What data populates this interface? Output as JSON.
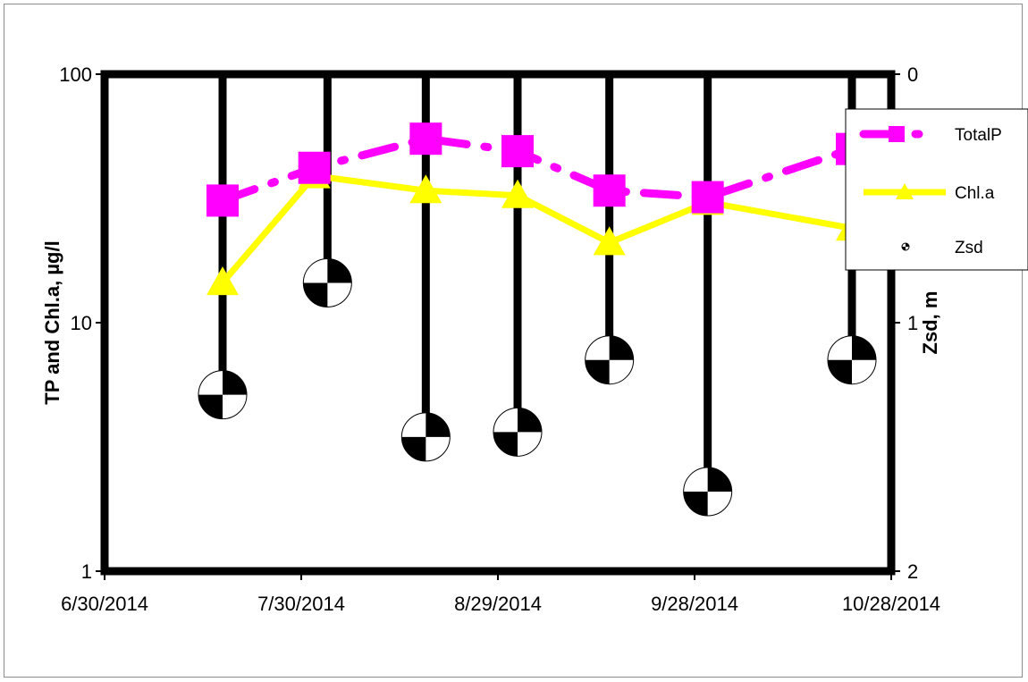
{
  "chart_data": {
    "type": "line",
    "x_axis": {
      "kind": "date",
      "ticks": [
        "6/30/2014",
        "7/30/2014",
        "8/29/2014",
        "9/28/2014",
        "10/28/2014"
      ],
      "range": [
        "2014-06-30",
        "2014-10-28"
      ]
    },
    "y_left": {
      "label": "TP and Chl.a, µg/l",
      "scale": "log",
      "range": [
        1,
        100
      ],
      "ticks": [
        "1",
        "10",
        "100"
      ]
    },
    "y_right": {
      "label": "Zsd, m",
      "scale": "linear",
      "reversed": true,
      "range": [
        0,
        2
      ],
      "ticks": [
        "0",
        "1",
        "2"
      ]
    },
    "grid": false,
    "legend_position": "right",
    "series": [
      {
        "name": "TotalP",
        "axis": "left",
        "color": "#ff00ff",
        "style": "dash-dot",
        "marker": "square",
        "points": [
          {
            "x": "2014-07-18",
            "y": 31
          },
          {
            "x": "2014-08-01",
            "y": 42
          },
          {
            "x": "2014-08-18",
            "y": 55
          },
          {
            "x": "2014-09-01",
            "y": 49
          },
          {
            "x": "2014-09-15",
            "y": 34
          },
          {
            "x": "2014-09-30",
            "y": 32
          },
          {
            "x": "2014-10-22",
            "y": 50
          }
        ]
      },
      {
        "name": "Chl.a",
        "axis": "left",
        "color": "#ffff00",
        "style": "solid",
        "marker": "triangle",
        "points": [
          {
            "x": "2014-07-18",
            "y": 14.5
          },
          {
            "x": "2014-08-01",
            "y": 39
          },
          {
            "x": "2014-08-18",
            "y": 34
          },
          {
            "x": "2014-09-01",
            "y": 32.5
          },
          {
            "x": "2014-09-15",
            "y": 21
          },
          {
            "x": "2014-09-30",
            "y": 30.5
          },
          {
            "x": "2014-10-22",
            "y": 24
          }
        ]
      },
      {
        "name": "Zsd",
        "axis": "right",
        "color": "#000000",
        "style": "bars-from-top",
        "marker": "secchi-disk",
        "points": [
          {
            "x": "2014-07-18",
            "y": 1.29
          },
          {
            "x": "2014-08-03",
            "y": 0.84
          },
          {
            "x": "2014-08-18",
            "y": 1.46
          },
          {
            "x": "2014-09-01",
            "y": 1.44
          },
          {
            "x": "2014-09-15",
            "y": 1.15
          },
          {
            "x": "2014-09-30",
            "y": 1.68
          },
          {
            "x": "2014-10-22",
            "y": 1.15
          }
        ]
      }
    ]
  }
}
